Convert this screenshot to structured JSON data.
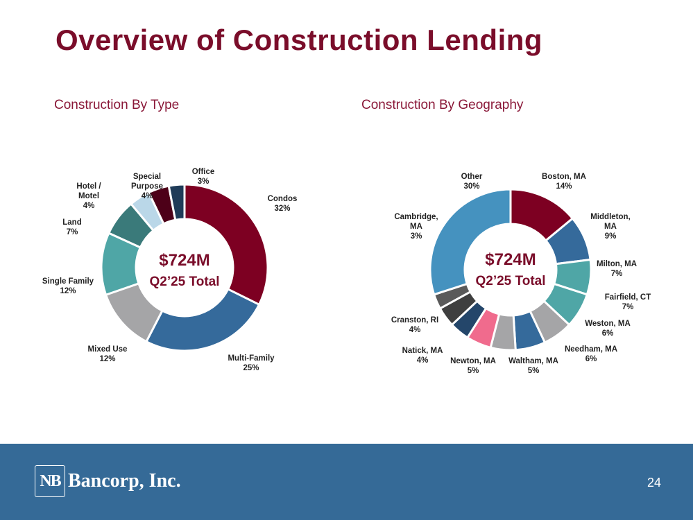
{
  "slide": {
    "title": "Overview of Construction Lending",
    "page_number": "24",
    "logo_mark": "NB",
    "logo_text": "Bancorp, Inc."
  },
  "colors": {
    "title": "#7a0d2a",
    "subtitle": "#8a1838",
    "footer": "#356a97",
    "center_text": "#7a0d2a"
  },
  "chart_data": [
    {
      "type": "pie",
      "subtitle": "Construction By Type",
      "center_label": [
        "$724M",
        "Q2’25 Total"
      ],
      "slices": [
        {
          "label": "Condos",
          "value": 32,
          "pct": "32%",
          "color": "#7d0022"
        },
        {
          "label": "Multi-Family",
          "value": 25,
          "pct": "25%",
          "color": "#356a9b"
        },
        {
          "label": "Mixed Use",
          "value": 12,
          "pct": "12%",
          "color": "#a5a5a7"
        },
        {
          "label": "Single Family",
          "value": 12,
          "pct": "12%",
          "color": "#4fa6a6"
        },
        {
          "label": "Land",
          "value": 7,
          "pct": "7%",
          "color": "#3a7a7a"
        },
        {
          "label": "Hotel / Motel",
          "value": 4,
          "pct": "4%",
          "color": "#bad7e8"
        },
        {
          "label": "Special Purpose",
          "value": 4,
          "pct": "4%",
          "color": "#4d0018"
        },
        {
          "label": "Office",
          "value": 3,
          "pct": "3%",
          "color": "#1f3b58"
        }
      ]
    },
    {
      "type": "pie",
      "subtitle": "Construction By Geography",
      "center_label": [
        "$724M",
        "Q2’25 Total"
      ],
      "slices": [
        {
          "label": "Boston, MA",
          "value": 14,
          "pct": "14%",
          "color": "#7d0022"
        },
        {
          "label": "Middleton, MA",
          "value": 9,
          "pct": "9%",
          "color": "#356a9b"
        },
        {
          "label": "Milton, MA",
          "value": 7,
          "pct": "7%",
          "color": "#4fa6a6"
        },
        {
          "label": "Fairfield, CT",
          "value": 7,
          "pct": "7%",
          "color": "#4fa6a6"
        },
        {
          "label": "Weston, MA",
          "value": 6,
          "pct": "6%",
          "color": "#a5a5a7"
        },
        {
          "label": "Needham, MA",
          "value": 6,
          "pct": "6%",
          "color": "#356a9b"
        },
        {
          "label": "Waltham, MA",
          "value": 5,
          "pct": "5%",
          "color": "#a5a5a7"
        },
        {
          "label": "Newton, MA",
          "value": 5,
          "pct": "5%",
          "color": "#f06b8d"
        },
        {
          "label": "Natick, MA",
          "value": 4,
          "pct": "4%",
          "color": "#24466a"
        },
        {
          "label": "Cranston, RI",
          "value": 4,
          "pct": "4%",
          "color": "#3f3f3f"
        },
        {
          "label": "Cambridge, MA",
          "value": 3,
          "pct": "3%",
          "color": "#5a5a5a"
        },
        {
          "label": "Other",
          "value": 30,
          "pct": "30%",
          "color": "#4592bf"
        }
      ]
    }
  ]
}
